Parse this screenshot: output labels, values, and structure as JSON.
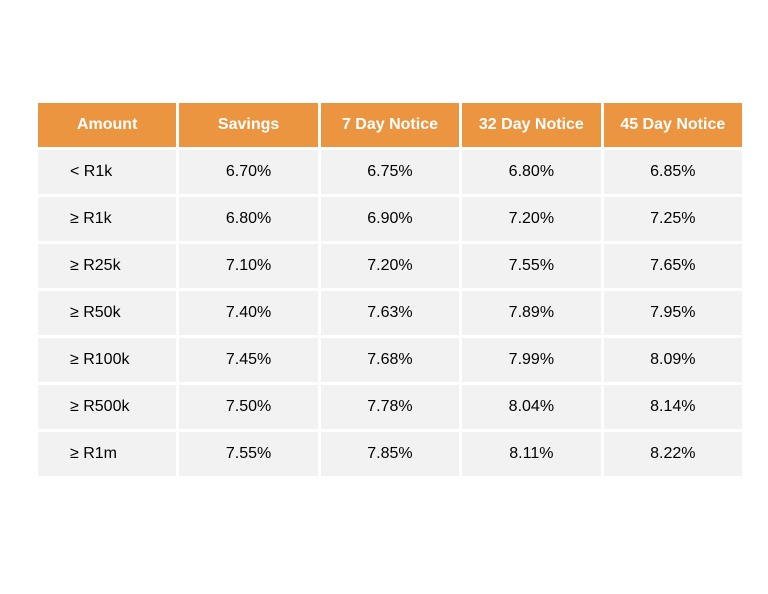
{
  "colors": {
    "header_background": "#ec9540",
    "header_text": "#ffffff",
    "cell_background": "#f2f2f2"
  },
  "table": {
    "headers": [
      "Amount",
      "Savings",
      "7 Day Notice",
      "32 Day Notice",
      "45 Day Notice"
    ],
    "rows": [
      [
        "< R1k",
        "6.70%",
        "6.75%",
        "6.80%",
        "6.85%"
      ],
      [
        "≥ R1k",
        "6.80%",
        "6.90%",
        "7.20%",
        "7.25%"
      ],
      [
        "≥ R25k",
        "7.10%",
        "7.20%",
        "7.55%",
        "7.65%"
      ],
      [
        "≥ R50k",
        "7.40%",
        "7.63%",
        "7.89%",
        "7.95%"
      ],
      [
        "≥ R100k",
        "7.45%",
        "7.68%",
        "7.99%",
        "8.09%"
      ],
      [
        "≥ R500k",
        "7.50%",
        "7.78%",
        "8.04%",
        "8.14%"
      ],
      [
        "≥ R1m",
        "7.55%",
        "7.85%",
        "8.11%",
        "8.22%"
      ]
    ]
  }
}
